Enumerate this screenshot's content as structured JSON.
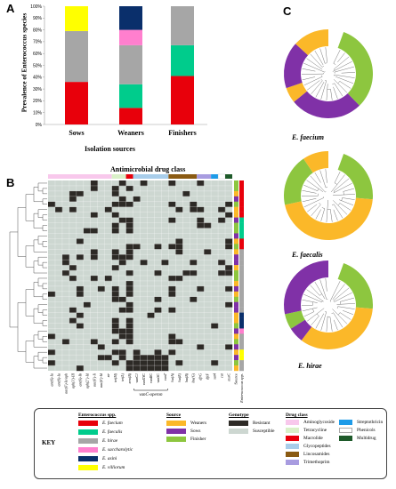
{
  "panels": {
    "a": "A",
    "b": "B",
    "c": "C"
  },
  "chart_data": {
    "type": "bar",
    "stacked": true,
    "categories": [
      "Sows",
      "Weaners",
      "Finishers"
    ],
    "xlabel": "Isolation sources",
    "ylabel": "Prevalence of Enterococcus species",
    "ylim": [
      0,
      100
    ],
    "yticks": [
      "0%",
      "10%",
      "20%",
      "30%",
      "40%",
      "50%",
      "60%",
      "70%",
      "80%",
      "90%",
      "100%"
    ],
    "series": [
      {
        "name": "E. faecium",
        "color": "#e8000b",
        "values": [
          36,
          14,
          41
        ]
      },
      {
        "name": "E. faecalis",
        "color": "#00cc8c",
        "values": [
          0,
          20,
          26
        ]
      },
      {
        "name": "E. hirae",
        "color": "#a6a6a6",
        "values": [
          43,
          33,
          33
        ]
      },
      {
        "name": "E. saccharolytic",
        "color": "#ff7fce",
        "values": [
          0,
          13,
          0
        ]
      },
      {
        "name": "E. asini",
        "color": "#0a2f6b",
        "values": [
          0,
          20,
          0
        ]
      },
      {
        "name": "E. villiorum",
        "color": "#ffff00",
        "values": [
          21,
          0,
          0
        ]
      }
    ]
  },
  "heatmap": {
    "title": "Antimicrobial drug class",
    "genes": [
      "ant(6)-Ia",
      "ant(9)-Ia",
      "aac(6')-Ie/aph",
      "aph(3')-III",
      "ant(6)-Ib",
      "aph(2'')-Id",
      "aac(6')-Ii",
      "aac(6')-Id",
      "str",
      "tet(M)",
      "tet(L)",
      "erm(B)",
      "vanC1",
      "vanXYC",
      "vanRC",
      "vanSC",
      "vanT",
      "lsa(A)",
      "lsa(E)",
      "lnu(B)",
      "lnu(G)",
      "dfrG",
      "dfrF",
      "sat4",
      "cat",
      "msrC"
    ],
    "operon_label": "vanC-operon",
    "source_label": "Source",
    "species_label": "Enterococcus spp."
  },
  "trees": [
    {
      "name": "E. faecium",
      "segments": [
        {
          "color": "#8dc63f",
          "pct": 34
        },
        {
          "color": "#8031a7",
          "pct": 28
        },
        {
          "color": "#fbb829",
          "pct": 6
        },
        {
          "color": "#8031a7",
          "pct": 18
        },
        {
          "color": "#fbb829",
          "pct": 14
        }
      ]
    },
    {
      "name": "E. faecalis",
      "segments": [
        {
          "color": "#8dc63f",
          "pct": 22
        },
        {
          "color": "#fbb829",
          "pct": 48
        },
        {
          "color": "#8dc63f",
          "pct": 20
        },
        {
          "color": "#fbb829",
          "pct": 10
        }
      ]
    },
    {
      "name": "E. hirae",
      "segments": [
        {
          "color": "#8dc63f",
          "pct": 22
        },
        {
          "color": "#fbb829",
          "pct": 36
        },
        {
          "color": "#8031a7",
          "pct": 6
        },
        {
          "color": "#8dc63f",
          "pct": 6
        },
        {
          "color": "#8031a7",
          "pct": 30
        }
      ]
    }
  ],
  "key": {
    "title": "KEY",
    "species": {
      "heading": "Enterococcus spp.",
      "items": [
        {
          "label": "E. faecium",
          "color": "#e8000b"
        },
        {
          "label": "E. faecalis",
          "color": "#00cc8c"
        },
        {
          "label": "E. hirae",
          "color": "#a6a6a6"
        },
        {
          "label": "E. saccharolytic",
          "color": "#ff7fce"
        },
        {
          "label": "E. asini",
          "color": "#0a2f6b"
        },
        {
          "label": "E. villiorum",
          "color": "#ffff00"
        }
      ]
    },
    "source": {
      "heading": "Source",
      "items": [
        {
          "label": "Weaners",
          "color": "#fbb829"
        },
        {
          "label": "Sows",
          "color": "#8031a7"
        },
        {
          "label": "Finisher",
          "color": "#8dc63f"
        }
      ]
    },
    "genotype": {
      "heading": "Genotype",
      "items": [
        {
          "label": "Resistant",
          "color": "#2d2a26"
        },
        {
          "label": "Susceptible",
          "color": "#cdd7d1"
        }
      ]
    },
    "drug": {
      "heading": "Drug class",
      "items": [
        {
          "label": "Aminoglycoside",
          "color": "#f8c8ec"
        },
        {
          "label": "Tetracycline",
          "color": "#d9f0c8"
        },
        {
          "label": "Macrolide",
          "color": "#e8000b"
        },
        {
          "label": "Glycopeptides",
          "color": "#a8cdea"
        },
        {
          "label": "Lincosamides",
          "color": "#8a5a12"
        },
        {
          "label": "Trimethoprim",
          "color": "#a89ce0"
        },
        {
          "label": "Streptothricin",
          "color": "#1e9be8"
        },
        {
          "label": "Phenicols",
          "color": "#ffffff"
        },
        {
          "label": "Multidrug",
          "color": "#1e5a2a"
        }
      ]
    }
  }
}
